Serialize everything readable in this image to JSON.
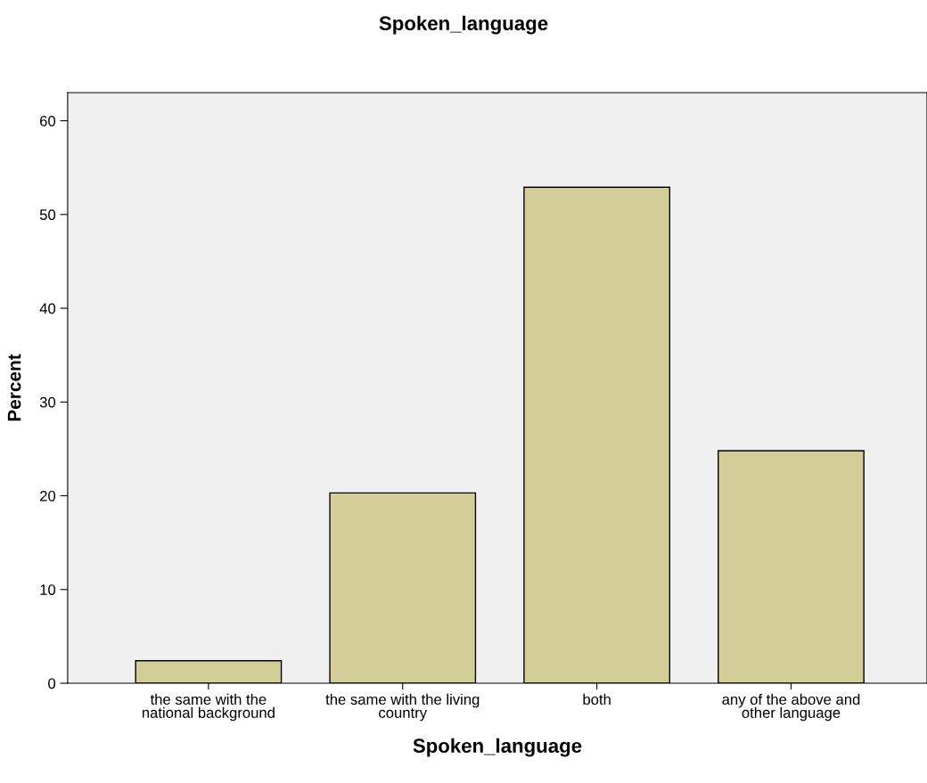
{
  "chart_data": {
    "type": "bar",
    "title": "Spoken_language",
    "xlabel": "Spoken_language",
    "ylabel": "Percent",
    "categories": [
      "the same with the\nnational background",
      "the same with the living\ncountry",
      "both",
      "any of the above and\nother language"
    ],
    "values": [
      2.4,
      20.3,
      52.9,
      24.8
    ],
    "color": "#d3ce97",
    "ylim": [
      0,
      63
    ],
    "yticks": [
      0,
      10,
      20,
      30,
      40,
      50,
      60
    ],
    "grid": false,
    "legend": false
  }
}
